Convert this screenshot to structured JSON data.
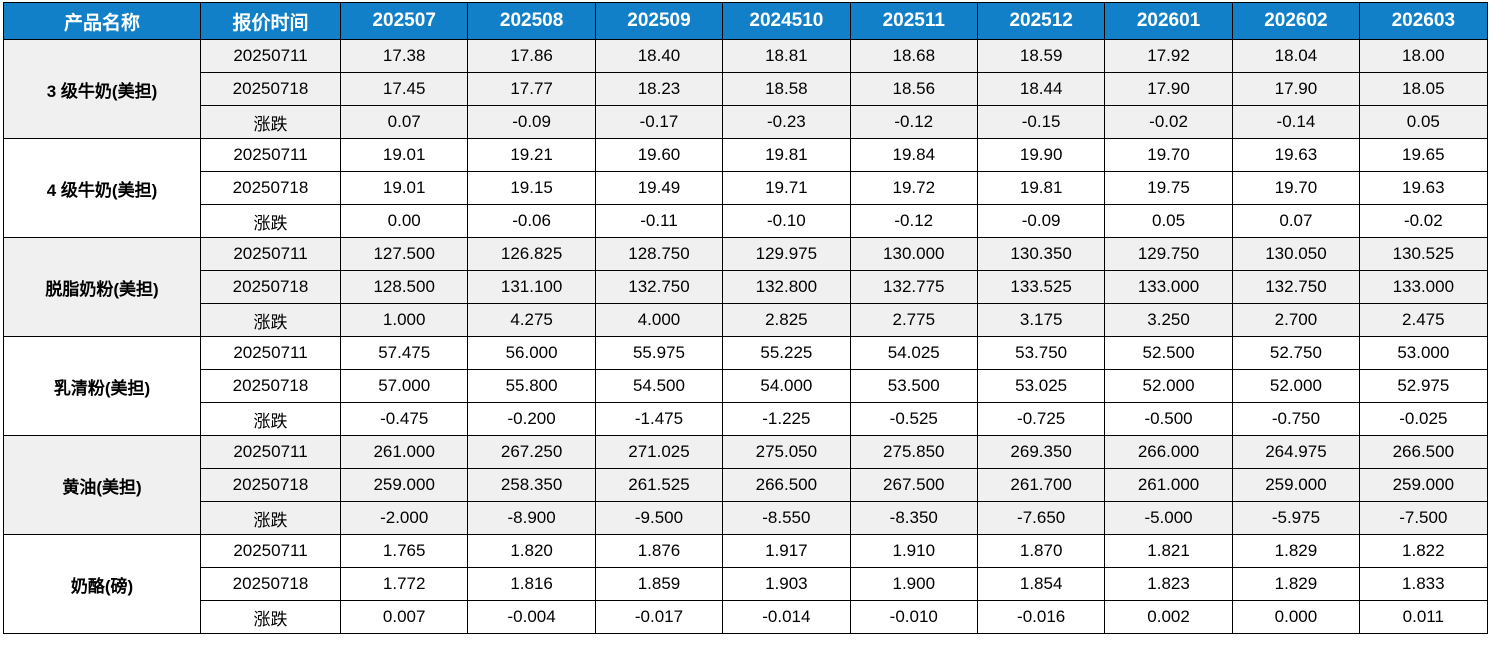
{
  "table": {
    "columns": {
      "product": "产品名称",
      "quote_time": "报价时间",
      "months": [
        "202507",
        "202508",
        "202509",
        "2024510",
        "202511",
        "202512",
        "202601",
        "202602",
        "202603"
      ]
    },
    "colors": {
      "header_bg": "#1180c8",
      "header_text": "#ffffff",
      "up": "#c00000",
      "down": "#00b050",
      "flat": "#000000",
      "band": "#f0f0f0",
      "border": "#000000"
    },
    "groups": [
      {
        "product": "3 级牛奶(美担)",
        "rows": [
          {
            "label": "20250711",
            "type": "price",
            "values": [
              "17.38",
              "17.86",
              "18.40",
              "18.81",
              "18.68",
              "18.59",
              "17.92",
              "18.04",
              "18.00"
            ]
          },
          {
            "label": "20250718",
            "type": "price",
            "values": [
              "17.45",
              "17.77",
              "18.23",
              "18.58",
              "18.56",
              "18.44",
              "17.90",
              "17.90",
              "18.05"
            ]
          },
          {
            "label": "涨跌",
            "type": "change",
            "values": [
              "0.07",
              "-0.09",
              "-0.17",
              "-0.23",
              "-0.12",
              "-0.15",
              "-0.02",
              "-0.14",
              "0.05"
            ]
          }
        ]
      },
      {
        "product": "4 级牛奶(美担)",
        "rows": [
          {
            "label": "20250711",
            "type": "price",
            "values": [
              "19.01",
              "19.21",
              "19.60",
              "19.81",
              "19.84",
              "19.90",
              "19.70",
              "19.63",
              "19.65"
            ]
          },
          {
            "label": "20250718",
            "type": "price",
            "values": [
              "19.01",
              "19.15",
              "19.49",
              "19.71",
              "19.72",
              "19.81",
              "19.75",
              "19.70",
              "19.63"
            ]
          },
          {
            "label": "涨跌",
            "type": "change",
            "values": [
              "0.00",
              "-0.06",
              "-0.11",
              "-0.10",
              "-0.12",
              "-0.09",
              "0.05",
              "0.07",
              "-0.02"
            ]
          }
        ]
      },
      {
        "product": "脱脂奶粉(美担)",
        "rows": [
          {
            "label": "20250711",
            "type": "price",
            "values": [
              "127.500",
              "126.825",
              "128.750",
              "129.975",
              "130.000",
              "130.350",
              "129.750",
              "130.050",
              "130.525"
            ]
          },
          {
            "label": "20250718",
            "type": "price",
            "values": [
              "128.500",
              "131.100",
              "132.750",
              "132.800",
              "132.775",
              "133.525",
              "133.000",
              "132.750",
              "133.000"
            ]
          },
          {
            "label": "涨跌",
            "type": "change",
            "values": [
              "1.000",
              "4.275",
              "4.000",
              "2.825",
              "2.775",
              "3.175",
              "3.250",
              "2.700",
              "2.475"
            ]
          }
        ]
      },
      {
        "product": "乳清粉(美担)",
        "rows": [
          {
            "label": "20250711",
            "type": "price",
            "values": [
              "57.475",
              "56.000",
              "55.975",
              "55.225",
              "54.025",
              "53.750",
              "52.500",
              "52.750",
              "53.000"
            ]
          },
          {
            "label": "20250718",
            "type": "price",
            "values": [
              "57.000",
              "55.800",
              "54.500",
              "54.000",
              "53.500",
              "53.025",
              "52.000",
              "52.000",
              "52.975"
            ]
          },
          {
            "label": "涨跌",
            "type": "change",
            "values": [
              "-0.475",
              "-0.200",
              "-1.475",
              "-1.225",
              "-0.525",
              "-0.725",
              "-0.500",
              "-0.750",
              "-0.025"
            ]
          }
        ]
      },
      {
        "product": "黄油(美担)",
        "rows": [
          {
            "label": "20250711",
            "type": "price",
            "values": [
              "261.000",
              "267.250",
              "271.025",
              "275.050",
              "275.850",
              "269.350",
              "266.000",
              "264.975",
              "266.500"
            ]
          },
          {
            "label": "20250718",
            "type": "price",
            "values": [
              "259.000",
              "258.350",
              "261.525",
              "266.500",
              "267.500",
              "261.700",
              "261.000",
              "259.000",
              "259.000"
            ]
          },
          {
            "label": "涨跌",
            "type": "change",
            "values": [
              "-2.000",
              "-8.900",
              "-9.500",
              "-8.550",
              "-8.350",
              "-7.650",
              "-5.000",
              "-5.975",
              "-7.500"
            ]
          }
        ]
      },
      {
        "product": "奶酪(磅)",
        "rows": [
          {
            "label": "20250711",
            "type": "price",
            "values": [
              "1.765",
              "1.820",
              "1.876",
              "1.917",
              "1.910",
              "1.870",
              "1.821",
              "1.829",
              "1.822"
            ]
          },
          {
            "label": "20250718",
            "type": "price",
            "values": [
              "1.772",
              "1.816",
              "1.859",
              "1.903",
              "1.900",
              "1.854",
              "1.823",
              "1.829",
              "1.833"
            ]
          },
          {
            "label": "涨跌",
            "type": "change",
            "values": [
              "0.007",
              "-0.004",
              "-0.017",
              "-0.014",
              "-0.010",
              "-0.016",
              "0.002",
              "0.000",
              "0.011"
            ]
          }
        ]
      }
    ]
  }
}
